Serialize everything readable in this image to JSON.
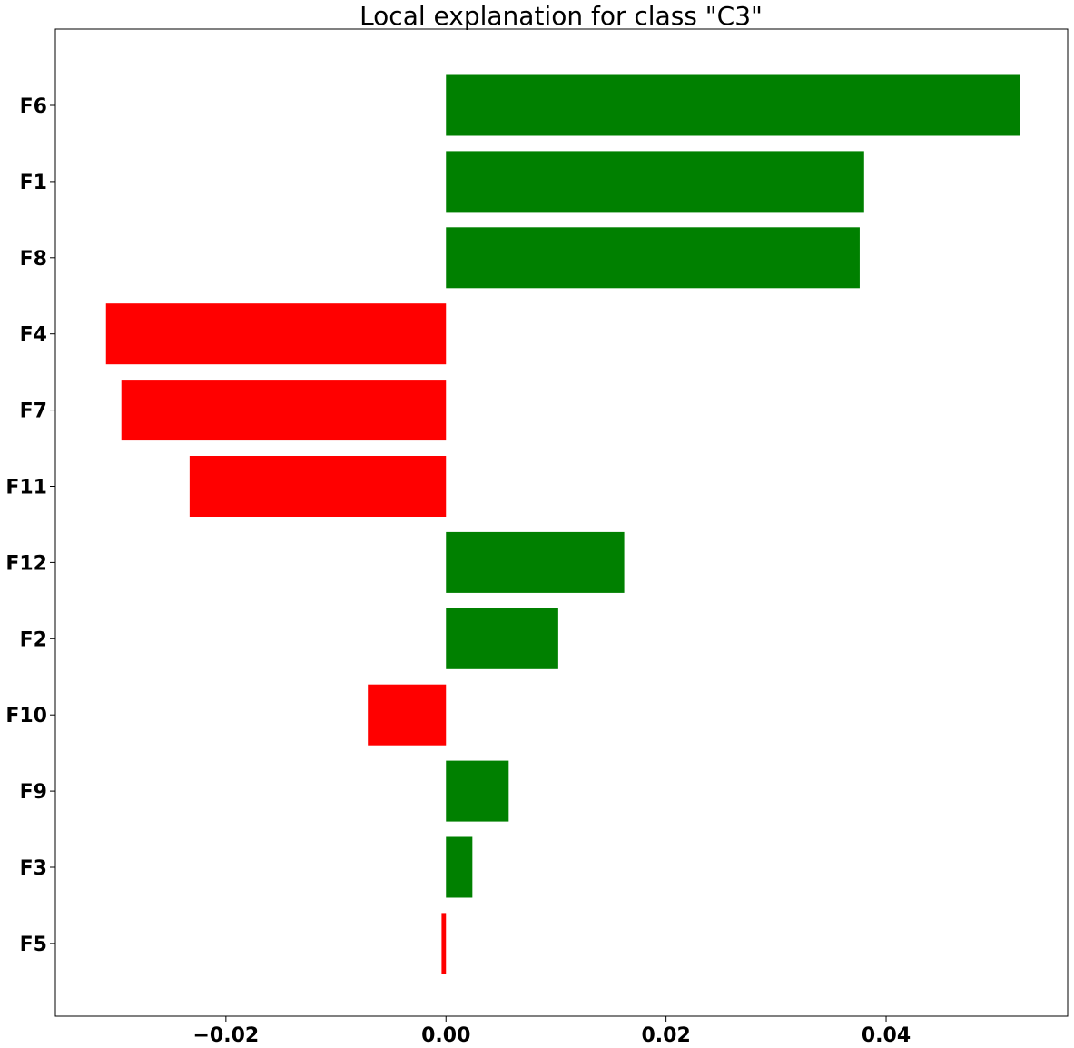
{
  "chart_data": {
    "type": "bar",
    "orientation": "horizontal",
    "title": "Local explanation for class \"C3\"",
    "xlabel": "",
    "ylabel": "",
    "xlim": [
      -0.0355,
      0.0565
    ],
    "grid": false,
    "legend": "none",
    "positive_color": "#008000",
    "negative_color": "#ff0000",
    "x_ticks": [
      -0.02,
      0.0,
      0.02,
      0.04
    ],
    "x_tick_labels": [
      "−0.02",
      "0.00",
      "0.02",
      "0.04"
    ],
    "categories": [
      "F6",
      "F1",
      "F8",
      "F4",
      "F7",
      "F11",
      "F12",
      "F2",
      "F10",
      "F9",
      "F3",
      "F5"
    ],
    "values": [
      0.0522,
      0.038,
      0.0376,
      -0.0309,
      -0.0295,
      -0.0233,
      0.0162,
      0.0102,
      -0.0071,
      0.0057,
      0.0024,
      -0.0004
    ]
  }
}
